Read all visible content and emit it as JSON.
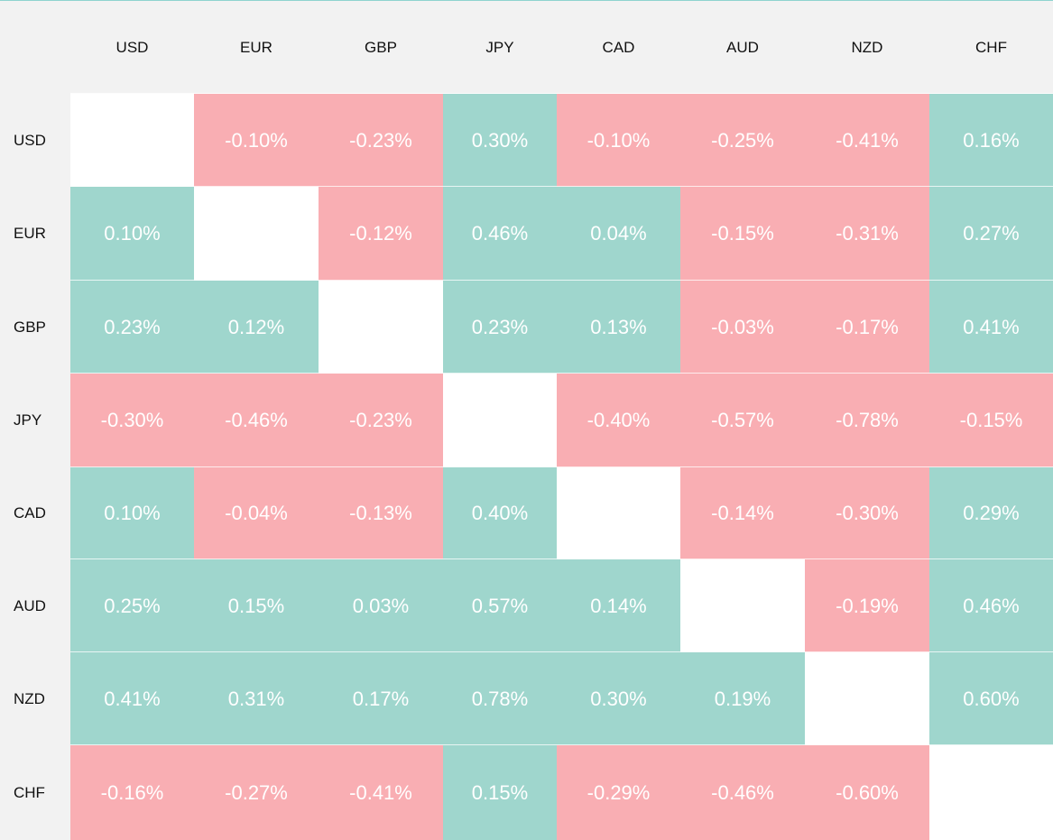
{
  "chart_data": {
    "type": "heatmap",
    "columns": [
      "USD",
      "EUR",
      "GBP",
      "JPY",
      "CAD",
      "AUD",
      "NZD",
      "CHF"
    ],
    "rows": [
      "USD",
      "EUR",
      "GBP",
      "JPY",
      "CAD",
      "AUD",
      "NZD",
      "CHF"
    ],
    "unit": "%",
    "values": [
      [
        null,
        -0.1,
        -0.23,
        0.3,
        -0.1,
        -0.25,
        -0.41,
        0.16
      ],
      [
        0.1,
        null,
        -0.12,
        0.46,
        0.04,
        -0.15,
        -0.31,
        0.27
      ],
      [
        0.23,
        0.12,
        null,
        0.23,
        0.13,
        -0.03,
        -0.17,
        0.41
      ],
      [
        -0.3,
        -0.46,
        -0.23,
        null,
        -0.4,
        -0.57,
        -0.78,
        -0.15
      ],
      [
        0.1,
        -0.04,
        -0.13,
        0.4,
        null,
        -0.14,
        -0.3,
        0.29
      ],
      [
        0.25,
        0.15,
        0.03,
        0.57,
        0.14,
        null,
        -0.19,
        0.46
      ],
      [
        0.41,
        0.31,
        0.17,
        0.78,
        0.3,
        0.19,
        null,
        0.6
      ],
      [
        -0.16,
        -0.27,
        -0.41,
        0.15,
        -0.29,
        -0.46,
        -0.6,
        null
      ]
    ],
    "colors": {
      "positive": "#9fd6cd",
      "negative": "#f9aeb3",
      "empty": "#ffffff",
      "header_bg": "#f2f2f2"
    }
  }
}
